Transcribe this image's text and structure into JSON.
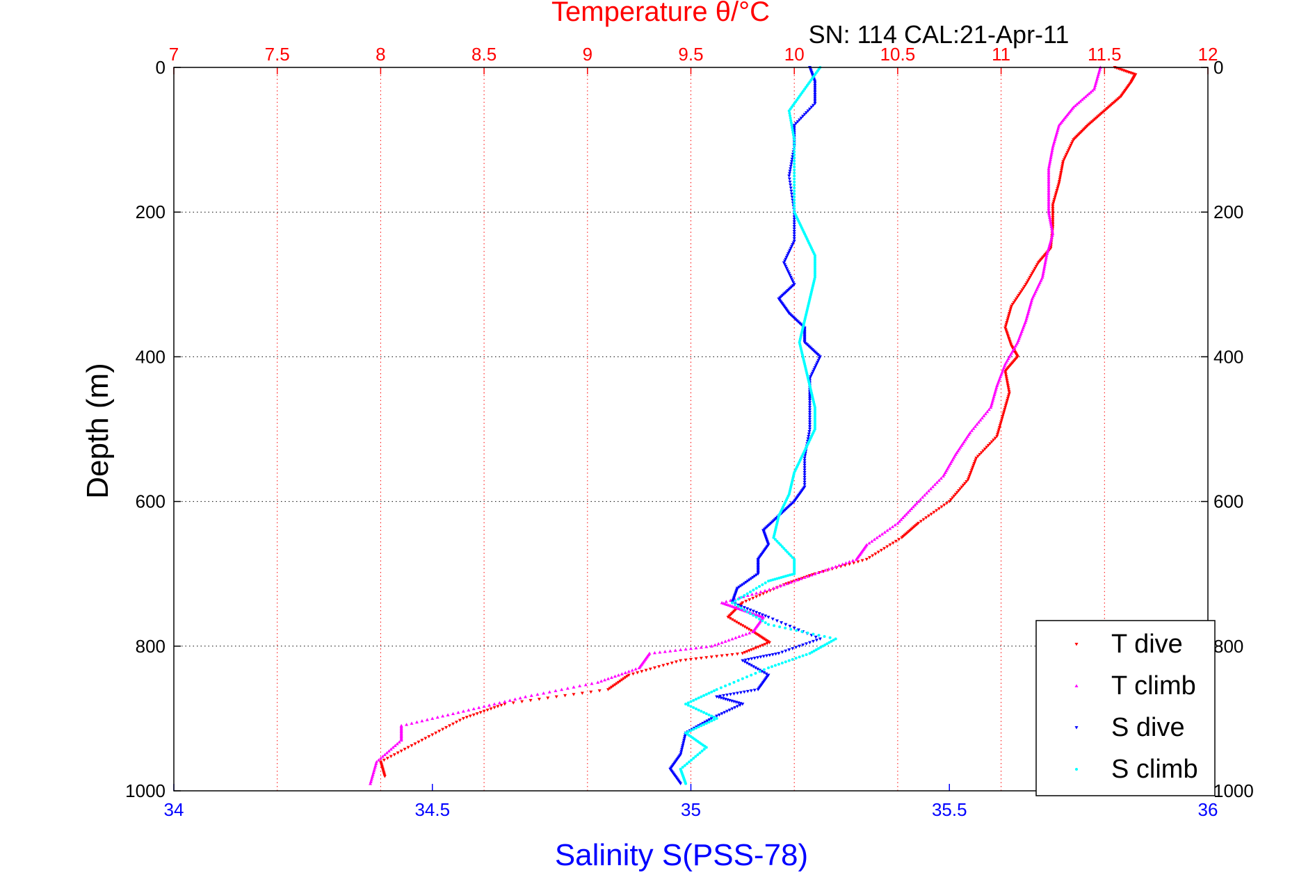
{
  "chart_data": {
    "type": "scatter",
    "title": "Temperature θ/°C",
    "subtitle": "SN: 114  CAL:21-Apr-11",
    "ylabel": "Depth (m)",
    "xlabel_bottom": "Salinity S(PSS-78)",
    "xlabel_top": "Temperature θ/°C",
    "ylim": [
      1000,
      0
    ],
    "xlim_bottom": [
      34,
      36
    ],
    "xlim_top": [
      7,
      12
    ],
    "y_ticks": [
      "0",
      "200",
      "400",
      "600",
      "800",
      "1000"
    ],
    "x_ticks_bottom": [
      "34",
      "34.5",
      "35",
      "35.5",
      "36"
    ],
    "x_ticks_top": [
      "7",
      "7.5",
      "8",
      "8.5",
      "9",
      "9.5",
      "10",
      "10.5",
      "11",
      "11.5",
      "12"
    ],
    "grid": true,
    "legend_position": "bottom-right",
    "colors": {
      "temperature_axis": "#ff0000",
      "salinity_axis": "#0000ff",
      "t_dive": "#ff0000",
      "t_climb": "#ff00ff",
      "s_dive": "#0000ff",
      "s_climb": "#00ffff"
    },
    "series": [
      {
        "name": "T dive",
        "axis": "top",
        "color": "#ff0000",
        "marker": "triangle-down",
        "points": [
          [
            11.55,
            0
          ],
          [
            11.65,
            10
          ],
          [
            11.63,
            20
          ],
          [
            11.58,
            40
          ],
          [
            11.5,
            60
          ],
          [
            11.42,
            80
          ],
          [
            11.35,
            100
          ],
          [
            11.3,
            130
          ],
          [
            11.28,
            160
          ],
          [
            11.25,
            190
          ],
          [
            11.25,
            220
          ],
          [
            11.24,
            250
          ],
          [
            11.18,
            270
          ],
          [
            11.12,
            300
          ],
          [
            11.05,
            330
          ],
          [
            11.02,
            360
          ],
          [
            11.05,
            385
          ],
          [
            11.08,
            400
          ],
          [
            11.02,
            420
          ],
          [
            11.04,
            450
          ],
          [
            11.01,
            480
          ],
          [
            10.98,
            510
          ],
          [
            10.88,
            540
          ],
          [
            10.84,
            570
          ],
          [
            10.75,
            600
          ],
          [
            10.6,
            630
          ],
          [
            10.52,
            650
          ],
          [
            10.35,
            680
          ],
          [
            10.1,
            700
          ],
          [
            9.95,
            715
          ],
          [
            9.75,
            740
          ],
          [
            9.68,
            760
          ],
          [
            9.8,
            780
          ],
          [
            9.88,
            795
          ],
          [
            9.75,
            810
          ],
          [
            9.45,
            820
          ],
          [
            9.2,
            840
          ],
          [
            9.1,
            860
          ],
          [
            8.6,
            880
          ],
          [
            8.4,
            900
          ],
          [
            8.2,
            930
          ],
          [
            8.0,
            960
          ],
          [
            8.02,
            980
          ]
        ]
      },
      {
        "name": "T climb",
        "axis": "top",
        "color": "#ff00ff",
        "marker": "triangle-up",
        "points": [
          [
            11.48,
            0
          ],
          [
            11.45,
            30
          ],
          [
            11.35,
            55
          ],
          [
            11.28,
            80
          ],
          [
            11.25,
            110
          ],
          [
            11.23,
            140
          ],
          [
            11.23,
            170
          ],
          [
            11.23,
            200
          ],
          [
            11.25,
            230
          ],
          [
            11.22,
            260
          ],
          [
            11.2,
            290
          ],
          [
            11.15,
            320
          ],
          [
            11.12,
            350
          ],
          [
            11.08,
            380
          ],
          [
            11.02,
            410
          ],
          [
            10.98,
            440
          ],
          [
            10.95,
            470
          ],
          [
            10.85,
            505
          ],
          [
            10.78,
            535
          ],
          [
            10.72,
            565
          ],
          [
            10.6,
            600
          ],
          [
            10.5,
            630
          ],
          [
            10.35,
            660
          ],
          [
            10.3,
            680
          ],
          [
            10.1,
            700
          ],
          [
            9.9,
            720
          ],
          [
            9.65,
            740
          ],
          [
            9.75,
            750
          ],
          [
            9.85,
            760
          ],
          [
            9.8,
            780
          ],
          [
            9.6,
            800
          ],
          [
            9.3,
            810
          ],
          [
            9.25,
            830
          ],
          [
            9.05,
            850
          ],
          [
            8.7,
            870
          ],
          [
            8.4,
            890
          ],
          [
            8.1,
            910
          ],
          [
            8.1,
            930
          ],
          [
            7.98,
            960
          ],
          [
            7.95,
            990
          ]
        ]
      },
      {
        "name": "S dive",
        "axis": "bottom",
        "color": "#0000ff",
        "marker": "triangle-down",
        "points": [
          [
            35.23,
            0
          ],
          [
            35.24,
            20
          ],
          [
            35.24,
            50
          ],
          [
            35.2,
            80
          ],
          [
            35.2,
            110
          ],
          [
            35.19,
            150
          ],
          [
            35.2,
            200
          ],
          [
            35.2,
            240
          ],
          [
            35.18,
            270
          ],
          [
            35.2,
            300
          ],
          [
            35.17,
            320
          ],
          [
            35.19,
            340
          ],
          [
            35.22,
            360
          ],
          [
            35.22,
            380
          ],
          [
            35.25,
            400
          ],
          [
            35.23,
            430
          ],
          [
            35.23,
            460
          ],
          [
            35.23,
            500
          ],
          [
            35.22,
            540
          ],
          [
            35.22,
            580
          ],
          [
            35.2,
            600
          ],
          [
            35.17,
            620
          ],
          [
            35.14,
            640
          ],
          [
            35.15,
            660
          ],
          [
            35.13,
            680
          ],
          [
            35.13,
            700
          ],
          [
            35.09,
            720
          ],
          [
            35.08,
            740
          ],
          [
            35.15,
            760
          ],
          [
            35.25,
            790
          ],
          [
            35.17,
            810
          ],
          [
            35.1,
            820
          ],
          [
            35.15,
            840
          ],
          [
            35.13,
            860
          ],
          [
            35.05,
            870
          ],
          [
            35.1,
            880
          ],
          [
            35.04,
            900
          ],
          [
            34.99,
            920
          ],
          [
            34.98,
            950
          ],
          [
            34.96,
            970
          ],
          [
            34.98,
            990
          ]
        ]
      },
      {
        "name": "S climb",
        "axis": "bottom",
        "color": "#00ffff",
        "marker": "dot",
        "points": [
          [
            35.25,
            0
          ],
          [
            35.22,
            30
          ],
          [
            35.19,
            60
          ],
          [
            35.2,
            100
          ],
          [
            35.2,
            150
          ],
          [
            35.2,
            200
          ],
          [
            35.22,
            230
          ],
          [
            35.24,
            260
          ],
          [
            35.24,
            290
          ],
          [
            35.23,
            320
          ],
          [
            35.22,
            350
          ],
          [
            35.21,
            380
          ],
          [
            35.22,
            410
          ],
          [
            35.23,
            440
          ],
          [
            35.24,
            470
          ],
          [
            35.24,
            500
          ],
          [
            35.22,
            530
          ],
          [
            35.2,
            560
          ],
          [
            35.19,
            590
          ],
          [
            35.17,
            620
          ],
          [
            35.16,
            650
          ],
          [
            35.2,
            680
          ],
          [
            35.2,
            700
          ],
          [
            35.15,
            710
          ],
          [
            35.08,
            740
          ],
          [
            35.15,
            770
          ],
          [
            35.28,
            790
          ],
          [
            35.23,
            810
          ],
          [
            35.15,
            830
          ],
          [
            35.05,
            860
          ],
          [
            34.99,
            880
          ],
          [
            35.05,
            900
          ],
          [
            34.99,
            920
          ],
          [
            35.03,
            940
          ],
          [
            34.98,
            970
          ],
          [
            34.99,
            990
          ]
        ]
      }
    ]
  }
}
